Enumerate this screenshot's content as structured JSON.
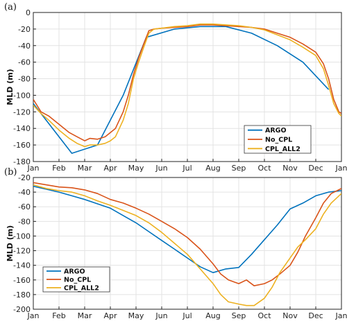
{
  "chart_data": [
    {
      "panel_label": "(a)",
      "type": "line",
      "ylabel": "MLD (m)",
      "ylim": [
        -180,
        0
      ],
      "yticks": [
        0,
        -20,
        -40,
        -60,
        -80,
        -100,
        -120,
        -140,
        -160,
        -180
      ],
      "xtick_labels": [
        "Jan",
        "Feb",
        "Mar",
        "Apr",
        "May",
        "Jun",
        "Jul",
        "Aug",
        "Sep",
        "Oct",
        "Nov",
        "Dec",
        "Jan"
      ],
      "xlim": [
        0,
        12
      ],
      "grid": true,
      "legend_position": "lower-right",
      "series": [
        {
          "name": "ARGO",
          "color": "#0072BD",
          "x": [
            0,
            1.5,
            2.5,
            3.5,
            4.4,
            5.5,
            6.5,
            7.5,
            8.5,
            9.5,
            10.5,
            11.5
          ],
          "y": [
            -110,
            -170,
            -160,
            -100,
            -30,
            -20,
            -17,
            -17,
            -25,
            -40,
            -60,
            -93
          ]
        },
        {
          "name": "No_CPL",
          "color": "#D95319",
          "x": [
            0,
            0.3,
            0.6,
            1.0,
            1.4,
            1.7,
            2.0,
            2.2,
            2.5,
            2.8,
            3.0,
            3.2,
            3.5,
            3.7,
            3.9,
            4.1,
            4.3,
            4.5,
            4.7,
            5.0,
            5.5,
            6.0,
            6.5,
            7.0,
            7.5,
            8.0,
            8.5,
            9.0,
            9.5,
            10.0,
            10.5,
            11.0,
            11.3,
            11.5,
            11.7,
            11.9,
            12.0
          ],
          "y": [
            -105,
            -120,
            -125,
            -135,
            -145,
            -150,
            -155,
            -152,
            -153,
            -150,
            -145,
            -140,
            -120,
            -100,
            -75,
            -55,
            -38,
            -22,
            -20,
            -19,
            -18,
            -17,
            -15,
            -15,
            -16,
            -17,
            -18,
            -20,
            -25,
            -30,
            -38,
            -48,
            -62,
            -80,
            -105,
            -120,
            -122
          ]
        },
        {
          "name": "CPL_ALL2",
          "color": "#EDB120",
          "x": [
            0,
            0.3,
            0.6,
            1.0,
            1.4,
            1.7,
            2.0,
            2.2,
            2.5,
            2.8,
            3.0,
            3.2,
            3.5,
            3.7,
            3.9,
            4.1,
            4.3,
            4.5,
            4.7,
            5.0,
            5.5,
            6.0,
            6.5,
            7.0,
            7.5,
            8.0,
            8.5,
            9.0,
            9.5,
            10.0,
            10.5,
            11.0,
            11.3,
            11.5,
            11.7,
            11.9,
            12.0
          ],
          "y": [
            -112,
            -122,
            -130,
            -142,
            -152,
            -158,
            -162,
            -160,
            -160,
            -158,
            -155,
            -150,
            -130,
            -110,
            -80,
            -60,
            -42,
            -25,
            -20,
            -19,
            -17,
            -16,
            -14,
            -14,
            -15,
            -16,
            -18,
            -21,
            -27,
            -33,
            -42,
            -52,
            -68,
            -88,
            -110,
            -122,
            -125
          ]
        }
      ]
    },
    {
      "panel_label": "(b)",
      "type": "line",
      "ylabel": "MLD (m)",
      "ylim": [
        -200,
        -20
      ],
      "yticks": [
        -20,
        -40,
        -60,
        -80,
        -100,
        -120,
        -140,
        -160,
        -180,
        -200
      ],
      "xtick_labels": [
        "Jan",
        "Feb",
        "Mar",
        "Apr",
        "May",
        "Jun",
        "Jul",
        "Aug",
        "Sep",
        "Oct",
        "Nov",
        "Dec",
        "Jan"
      ],
      "xlim": [
        0,
        12
      ],
      "grid": true,
      "legend_position": "lower-left",
      "series": [
        {
          "name": "ARGO",
          "color": "#0072BD",
          "x": [
            0,
            0.5,
            1.0,
            1.5,
            2.0,
            2.5,
            3.0,
            3.5,
            4.0,
            4.5,
            5.0,
            5.5,
            6.0,
            6.5,
            7.0,
            7.5,
            8.0,
            8.5,
            9.0,
            9.5,
            10.0,
            10.5,
            11.0,
            11.5,
            12.0
          ],
          "y": [
            -32,
            -36,
            -40,
            -45,
            -50,
            -56,
            -62,
            -72,
            -82,
            -94,
            -106,
            -118,
            -130,
            -142,
            -150,
            -145,
            -143,
            -125,
            -105,
            -85,
            -63,
            -55,
            -45,
            -40,
            -38
          ]
        },
        {
          "name": "No_CPL",
          "color": "#D95319",
          "x": [
            0,
            0.5,
            1.0,
            1.5,
            2.0,
            2.5,
            3.0,
            3.5,
            4.0,
            4.5,
            5.0,
            5.5,
            6.0,
            6.5,
            7.0,
            7.3,
            7.6,
            8.0,
            8.3,
            8.6,
            9.0,
            9.3,
            9.6,
            10.0,
            10.3,
            10.6,
            11.0,
            11.3,
            11.6,
            12.0
          ],
          "y": [
            -27,
            -30,
            -33,
            -34,
            -37,
            -42,
            -50,
            -55,
            -62,
            -70,
            -80,
            -90,
            -102,
            -118,
            -138,
            -152,
            -160,
            -165,
            -160,
            -168,
            -165,
            -160,
            -152,
            -140,
            -122,
            -100,
            -75,
            -55,
            -42,
            -35
          ]
        },
        {
          "name": "CPL_ALL2",
          "color": "#EDB120",
          "x": [
            0,
            0.5,
            1.0,
            1.5,
            2.0,
            2.5,
            3.0,
            3.5,
            4.0,
            4.5,
            5.0,
            5.5,
            6.0,
            6.5,
            7.0,
            7.3,
            7.6,
            8.0,
            8.3,
            8.6,
            9.0,
            9.3,
            9.6,
            10.0,
            10.3,
            10.6,
            11.0,
            11.3,
            11.6,
            12.0
          ],
          "y": [
            -30,
            -35,
            -38,
            -40,
            -45,
            -52,
            -58,
            -65,
            -72,
            -82,
            -95,
            -110,
            -125,
            -145,
            -165,
            -180,
            -190,
            -193,
            -195,
            -195,
            -185,
            -170,
            -150,
            -130,
            -115,
            -105,
            -90,
            -70,
            -55,
            -42
          ]
        }
      ]
    }
  ]
}
